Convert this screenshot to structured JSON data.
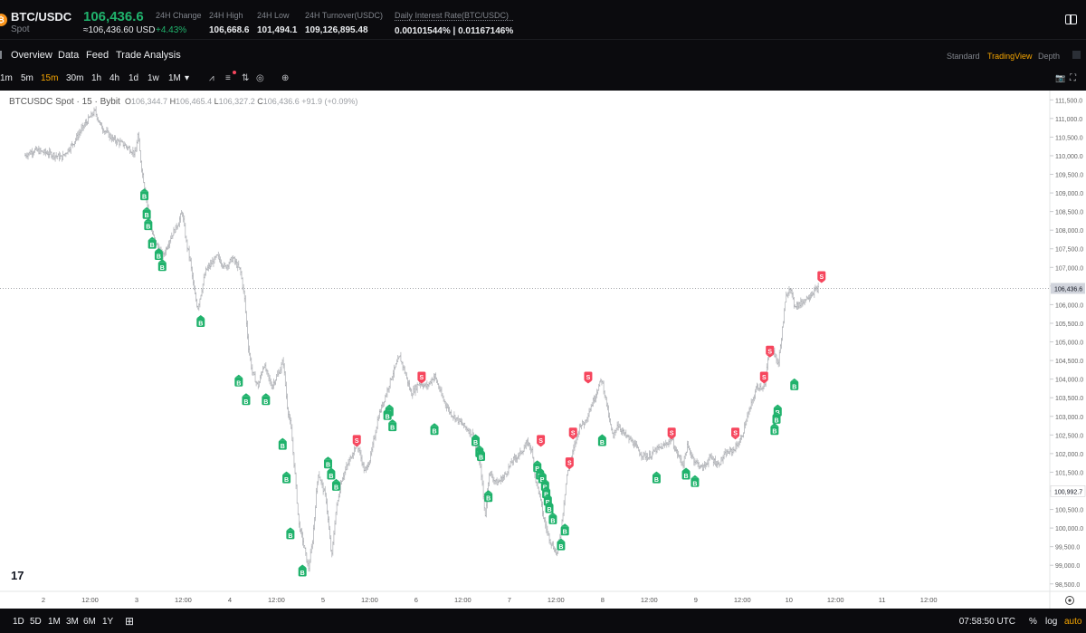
{
  "header": {
    "coin_glyph": "₿",
    "pair": "BTC/USDC",
    "market": "Spot",
    "last_price": "106,436.6",
    "last_price_usd": "≈106,436.60 USD",
    "stats": [
      {
        "label": "24H Change",
        "value": "+4.43%",
        "tone": "up"
      },
      {
        "label": "24H High",
        "value": "106,668.6",
        "tone": "plain"
      },
      {
        "label": "24H Low",
        "value": "101,494.1",
        "tone": "plain"
      },
      {
        "label": "24H Turnover(USDC)",
        "value": "109,126,895.48",
        "tone": "plain"
      },
      {
        "label": "Daily Interest Rate(BTC/USDC)",
        "value": "0.00101544% | 0.01167146%",
        "tone": "plain"
      }
    ]
  },
  "nav": {
    "tabs": [
      "Overview",
      "Data",
      "Feed",
      "Trade Analysis"
    ],
    "views": [
      "Standard",
      "TradingView",
      "Depth"
    ],
    "active_view": "TradingView"
  },
  "toolbar": {
    "timeframes": [
      "1m",
      "5m",
      "15m",
      "30m",
      "1h",
      "4h",
      "1d",
      "1w",
      "1M"
    ],
    "active_timeframe": "15m",
    "dropdown_glyph": "▾",
    "tool_glyphs": [
      "⩘",
      "≡",
      "⇅",
      "◎",
      "⊕"
    ],
    "right_glyphs": [
      "📷",
      "⛶"
    ]
  },
  "chart_data": {
    "type": "ohlc-bar",
    "symbol": "BTCUSDC Spot",
    "interval": "15",
    "exchange": "Bybit",
    "legend": {
      "O": "106,344.7",
      "H": "106,465.4",
      "L": "106,327.2",
      "C": "106,436.6",
      "change": "+91.9 (+0.09%)"
    },
    "ylim": [
      98300,
      111750
    ],
    "y_ticks": [
      111500,
      111000,
      110500,
      110000,
      109500,
      109000,
      108500,
      108000,
      107500,
      107000,
      106500,
      106000,
      105500,
      105000,
      104500,
      104000,
      103500,
      103000,
      102500,
      102000,
      101500,
      101000,
      100500,
      100000,
      99500,
      99000,
      98500
    ],
    "x_range_hours": [
      0,
      248
    ],
    "x_ticks": [
      {
        "t": 0,
        "label": "2"
      },
      {
        "t": 12,
        "label": "12:00"
      },
      {
        "t": 24,
        "label": "3"
      },
      {
        "t": 36,
        "label": "12:00"
      },
      {
        "t": 48,
        "label": "4"
      },
      {
        "t": 60,
        "label": "12:00"
      },
      {
        "t": 72,
        "label": "5"
      },
      {
        "t": 84,
        "label": "12:00"
      },
      {
        "t": 96,
        "label": "6"
      },
      {
        "t": 108,
        "label": "12:00"
      },
      {
        "t": 120,
        "label": "7"
      },
      {
        "t": 132,
        "label": "12:00"
      },
      {
        "t": 144,
        "label": "8"
      },
      {
        "t": 156,
        "label": "12:00"
      },
      {
        "t": 168,
        "label": "9"
      },
      {
        "t": 180,
        "label": "12:00"
      },
      {
        "t": 192,
        "label": "10"
      },
      {
        "t": 204,
        "label": "12:00"
      },
      {
        "t": 216,
        "label": "11"
      },
      {
        "t": 228,
        "label": "12:00"
      }
    ],
    "first_bar_hour": -4.7,
    "last_bar_hour": 199.6,
    "price_path": [
      [
        -4.7,
        110000
      ],
      [
        -2,
        110150
      ],
      [
        2,
        110050
      ],
      [
        5,
        109950
      ],
      [
        8,
        110350
      ],
      [
        10,
        110700
      ],
      [
        12,
        111000
      ],
      [
        13.5,
        111200
      ],
      [
        15,
        110800
      ],
      [
        18,
        110450
      ],
      [
        21,
        110300
      ],
      [
        24,
        110050
      ],
      [
        24.5,
        110600
      ],
      [
        25.5,
        109700
      ],
      [
        27,
        108700
      ],
      [
        28,
        108000
      ],
      [
        29,
        107700
      ],
      [
        31,
        107300
      ],
      [
        33,
        107800
      ],
      [
        35,
        108200
      ],
      [
        36,
        108500
      ],
      [
        37,
        107700
      ],
      [
        38,
        107200
      ],
      [
        39,
        106400
      ],
      [
        40,
        105900
      ],
      [
        42,
        106900
      ],
      [
        45,
        107300
      ],
      [
        47,
        107000
      ],
      [
        49,
        107250
      ],
      [
        51,
        106900
      ],
      [
        52,
        106200
      ],
      [
        53,
        104900
      ],
      [
        54,
        104200
      ],
      [
        55.5,
        103800
      ],
      [
        57,
        104400
      ],
      [
        59,
        103800
      ],
      [
        61,
        104200
      ],
      [
        62,
        104500
      ],
      [
        63,
        103300
      ],
      [
        64,
        102700
      ],
      [
        65,
        101500
      ],
      [
        66,
        100100
      ],
      [
        67,
        99700
      ],
      [
        68.5,
        98900
      ],
      [
        69.5,
        99600
      ],
      [
        71,
        101500
      ],
      [
        73,
        100800
      ],
      [
        74.5,
        99200
      ],
      [
        75.5,
        100400
      ],
      [
        77,
        101300
      ],
      [
        79,
        101800
      ],
      [
        81,
        102300
      ],
      [
        83,
        101500
      ],
      [
        84.5,
        101900
      ],
      [
        86.5,
        103000
      ],
      [
        88.5,
        103600
      ],
      [
        90,
        104100
      ],
      [
        92,
        104600
      ],
      [
        93,
        104300
      ],
      [
        95,
        103600
      ],
      [
        97,
        103900
      ],
      [
        99,
        103800
      ],
      [
        101,
        104100
      ],
      [
        103,
        103500
      ],
      [
        105,
        103100
      ],
      [
        107,
        102900
      ],
      [
        109,
        102700
      ],
      [
        111,
        102500
      ],
      [
        113,
        101500
      ],
      [
        114,
        100300
      ],
      [
        115,
        101500
      ],
      [
        117,
        101200
      ],
      [
        119,
        101400
      ],
      [
        121,
        101800
      ],
      [
        123,
        102000
      ],
      [
        125,
        102300
      ],
      [
        126,
        102100
      ],
      [
        127,
        101300
      ],
      [
        128,
        100900
      ],
      [
        129,
        100300
      ],
      [
        130,
        99900
      ],
      [
        131,
        99600
      ],
      [
        132.5,
        99300
      ],
      [
        133.5,
        99900
      ],
      [
        135,
        101400
      ],
      [
        137,
        102200
      ],
      [
        138.5,
        102800
      ],
      [
        139.5,
        102800
      ],
      [
        141,
        103200
      ],
      [
        142.5,
        103600
      ],
      [
        144,
        104000
      ],
      [
        145,
        103500
      ],
      [
        146,
        102900
      ],
      [
        147,
        102400
      ],
      [
        148,
        102800
      ],
      [
        150,
        102500
      ],
      [
        152,
        102300
      ],
      [
        154,
        102000
      ],
      [
        156,
        101900
      ],
      [
        158,
        102100
      ],
      [
        160,
        102200
      ],
      [
        162,
        102400
      ],
      [
        163,
        102100
      ],
      [
        165,
        101700
      ],
      [
        166,
        102200
      ],
      [
        168,
        101800
      ],
      [
        170,
        101600
      ],
      [
        172,
        101900
      ],
      [
        174,
        101700
      ],
      [
        176,
        102000
      ],
      [
        178,
        102100
      ],
      [
        180,
        102400
      ],
      [
        181,
        102800
      ],
      [
        182.5,
        103300
      ],
      [
        184,
        103800
      ],
      [
        186,
        103800
      ],
      [
        187,
        104700
      ],
      [
        188,
        104800
      ],
      [
        189.5,
        104400
      ],
      [
        190.5,
        105300
      ],
      [
        191.5,
        106200
      ],
      [
        192.5,
        106500
      ],
      [
        193.5,
        106000
      ],
      [
        195,
        106000
      ],
      [
        197,
        106200
      ],
      [
        199.6,
        106436.6
      ]
    ],
    "markers": {
      "buy": [
        [
          26,
          108900
        ],
        [
          26.6,
          108400
        ],
        [
          27,
          108100
        ],
        [
          28,
          107600
        ],
        [
          29.7,
          107300
        ],
        [
          30.6,
          107000
        ],
        [
          40.5,
          105500
        ],
        [
          50.3,
          103900
        ],
        [
          52.2,
          103400
        ],
        [
          57.3,
          103400
        ],
        [
          61.6,
          102200
        ],
        [
          62.6,
          101300
        ],
        [
          63.6,
          99800
        ],
        [
          66.7,
          98800
        ],
        [
          73.3,
          101700
        ],
        [
          74.1,
          101400
        ],
        [
          75.4,
          101100
        ],
        [
          89.1,
          103100
        ],
        [
          88.6,
          103000
        ],
        [
          89.9,
          102700
        ],
        [
          100.7,
          102600
        ],
        [
          111.3,
          102300
        ],
        [
          112.3,
          102000
        ],
        [
          112.7,
          101900
        ],
        [
          114.6,
          100800
        ],
        [
          127.2,
          101600
        ],
        [
          127.9,
          101400
        ],
        [
          128.5,
          101300
        ],
        [
          129.2,
          101100
        ],
        [
          129.5,
          100900
        ],
        [
          129.9,
          100700
        ],
        [
          130.3,
          100500
        ],
        [
          131.2,
          100200
        ],
        [
          133.3,
          99500
        ],
        [
          134.3,
          99900
        ],
        [
          143.9,
          102300
        ],
        [
          157.9,
          101300
        ],
        [
          165.5,
          101400
        ],
        [
          167.8,
          101200
        ],
        [
          189.1,
          103100
        ],
        [
          188.8,
          102900
        ],
        [
          188.3,
          102600
        ],
        [
          193.4,
          103800
        ]
      ],
      "sell": [
        [
          97.4,
          104100
        ],
        [
          80.7,
          102400
        ],
        [
          128.1,
          102400
        ],
        [
          135.5,
          101800
        ],
        [
          136.4,
          102600
        ],
        [
          140.3,
          104100
        ],
        [
          161.8,
          102600
        ],
        [
          178.2,
          102600
        ],
        [
          185.6,
          104100
        ],
        [
          187.1,
          104800
        ],
        [
          200.4,
          106800
        ]
      ]
    },
    "last_price_line": 106436.6,
    "last_price_label": "106,436.6",
    "crosshair_label": "100,992.7",
    "crosshair_price": 100992.7,
    "buy_glyph": "B",
    "sell_glyph": "S",
    "watermark": "17"
  },
  "bottom": {
    "ranges": [
      "1D",
      "5D",
      "1M",
      "3M",
      "6M",
      "1Y"
    ],
    "calendar_glyph": "⊞",
    "clock": "07:58:50 UTC",
    "options": [
      "%",
      "log",
      "auto"
    ],
    "active_option": "auto"
  }
}
